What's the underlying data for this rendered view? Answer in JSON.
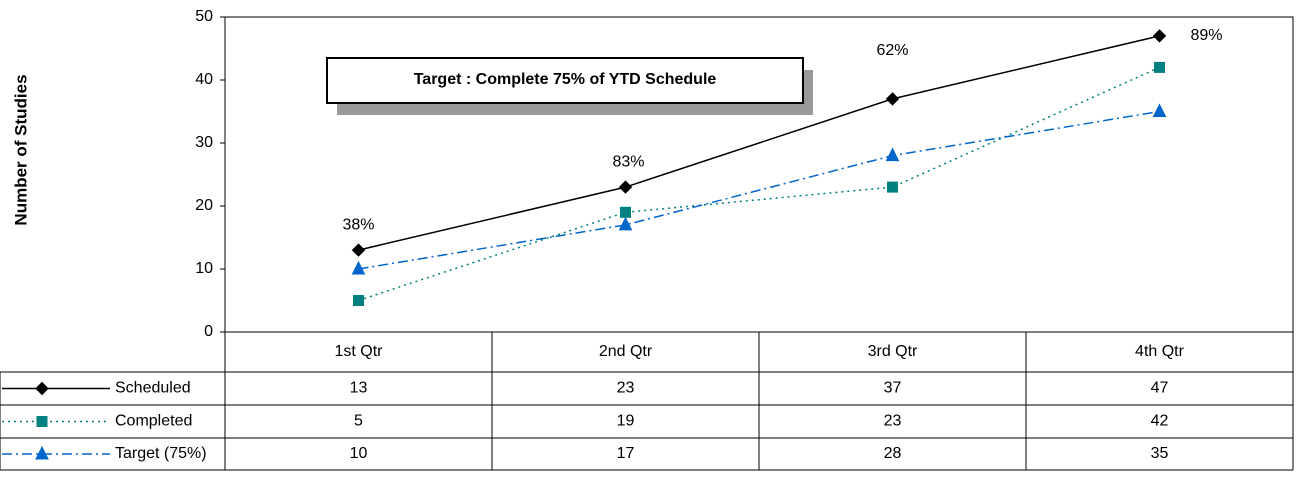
{
  "chart_data": {
    "type": "line",
    "y_axis_label": "Number of Studies",
    "categories": [
      "1st Qtr",
      "2nd Qtr",
      "3rd Qtr",
      "4th Qtr"
    ],
    "series": [
      {
        "name": "Scheduled",
        "color": "#000000",
        "marker": "diamond",
        "dash": "solid",
        "values": [
          13,
          23,
          37,
          47
        ]
      },
      {
        "name": "Completed",
        "color": "#008080",
        "marker": "square",
        "dash": "dot",
        "values": [
          5,
          19,
          23,
          42
        ]
      },
      {
        "name": "Target (75%)",
        "color": "#0066cc",
        "marker": "triangle",
        "dash": "dashdot",
        "values": [
          10,
          17,
          28,
          35
        ]
      }
    ],
    "annotations": [
      "38%",
      "83%",
      "62%",
      "89%"
    ],
    "text_box": "Target : Complete 75% of YTD Schedule",
    "ylim": [
      0,
      50
    ],
    "yticks": [
      0,
      10,
      20,
      30,
      40,
      50
    ],
    "grid": false,
    "data_table": true
  }
}
